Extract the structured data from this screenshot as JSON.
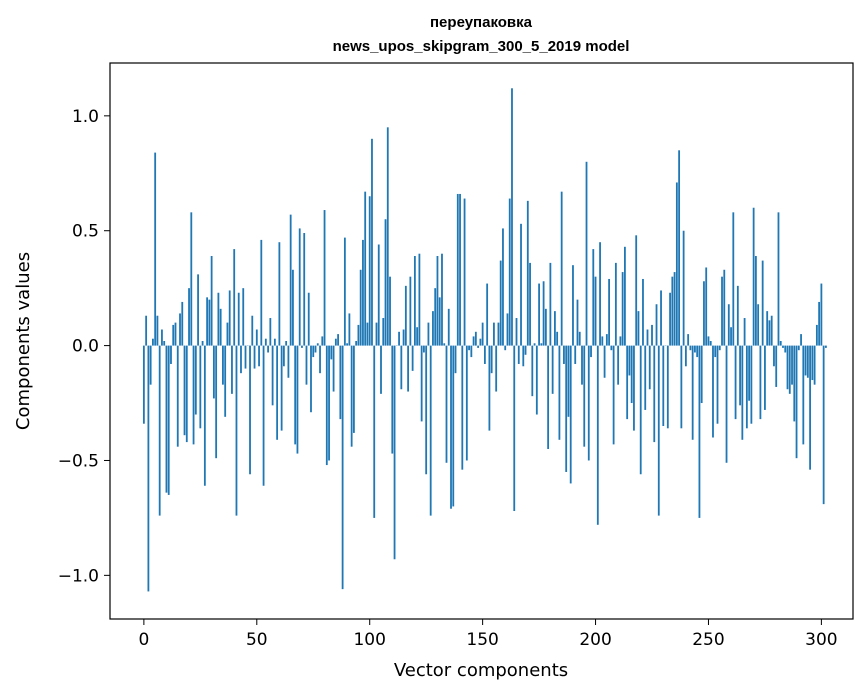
{
  "chart_data": {
    "type": "bar",
    "title_lines": [
      "переупаковка",
      "news_upos_skipgram_300_5_2019 model"
    ],
    "xlabel": "Vector components",
    "ylabel": "Components values",
    "xlim": [
      -15,
      314
    ],
    "ylim": [
      -1.19,
      1.23
    ],
    "xticks": [
      0,
      50,
      100,
      150,
      200,
      250,
      300
    ],
    "yticks": [
      -1.0,
      -0.5,
      0.0,
      0.5,
      1.0
    ],
    "ytick_labels": [
      "−1.0",
      "−0.5",
      "0.0",
      "0.5",
      "1.0"
    ],
    "bar_color": "#1f77b4",
    "grid": false,
    "legend": "none",
    "values": [
      -0.34,
      0.13,
      -1.07,
      -0.17,
      0.03,
      0.84,
      0.13,
      -0.74,
      0.07,
      0.02,
      -0.64,
      -0.65,
      -0.08,
      0.09,
      0.1,
      -0.44,
      0.14,
      0.19,
      -0.39,
      -0.42,
      0.25,
      0.58,
      -0.43,
      -0.3,
      0.31,
      -0.36,
      0.02,
      -0.61,
      0.21,
      0.2,
      0.39,
      -0.23,
      -0.49,
      0.23,
      0.16,
      -0.17,
      -0.31,
      0.1,
      0.24,
      -0.21,
      0.42,
      -0.74,
      0.23,
      -0.12,
      0.25,
      -0.1,
      0.0,
      -0.56,
      0.13,
      -0.1,
      0.07,
      -0.09,
      0.46,
      -0.61,
      0.03,
      -0.03,
      0.12,
      -0.26,
      0.03,
      -0.41,
      0.45,
      -0.37,
      -0.09,
      0.02,
      -0.14,
      0.57,
      0.33,
      -0.43,
      -0.47,
      0.51,
      -0.01,
      0.49,
      -0.17,
      0.23,
      -0.29,
      -0.05,
      -0.03,
      0.01,
      -0.12,
      0.04,
      0.59,
      -0.52,
      -0.5,
      -0.06,
      -0.2,
      0.03,
      0.05,
      -0.32,
      -1.06,
      0.47,
      0.01,
      0.14,
      -0.44,
      -0.38,
      0.02,
      0.09,
      0.33,
      0.46,
      0.67,
      0.1,
      0.65,
      0.9,
      -0.75,
      0.1,
      0.44,
      -0.21,
      0.12,
      0.55,
      0.95,
      0.3,
      -0.47,
      -0.93,
      0.0,
      0.06,
      -0.19,
      0.07,
      0.26,
      -0.2,
      0.3,
      -0.11,
      0.39,
      0.08,
      0.4,
      -0.33,
      -0.03,
      -0.56,
      0.1,
      -0.74,
      0.15,
      0.25,
      0.39,
      0.21,
      0.4,
      0.01,
      -0.51,
      0.16,
      -0.71,
      -0.7,
      -0.12,
      0.66,
      0.66,
      -0.54,
      0.64,
      -0.5,
      -0.02,
      -0.05,
      0.04,
      0.06,
      -0.01,
      0.03,
      0.1,
      -0.08,
      0.27,
      -0.37,
      -0.12,
      0.1,
      -0.2,
      0.1,
      0.37,
      0.51,
      -0.02,
      0.14,
      0.64,
      1.12,
      -0.72,
      0.12,
      -0.08,
      0.53,
      -0.09,
      -0.04,
      0.63,
      0.36,
      -0.22,
      0.01,
      -0.3,
      0.27,
      0.01,
      0.28,
      0.16,
      -0.45,
      0.36,
      -0.21,
      0.15,
      0.06,
      -0.41,
      0.67,
      -0.08,
      -0.55,
      -0.31,
      -0.6,
      0.35,
      -0.08,
      0.2,
      0.06,
      -0.17,
      -0.44,
      0.8,
      -0.5,
      -0.05,
      0.42,
      0.3,
      -0.78,
      0.45,
      0.04,
      -0.14,
      0.05,
      0.29,
      -0.02,
      -0.43,
      0.36,
      -0.17,
      0.04,
      0.32,
      0.43,
      -0.32,
      -0.13,
      -0.25,
      -0.37,
      0.48,
      0.15,
      -0.56,
      0.29,
      -0.28,
      0.07,
      -0.19,
      0.09,
      -0.42,
      0.18,
      -0.74,
      0.24,
      -0.35,
      0.0,
      -0.36,
      0.23,
      0.3,
      0.32,
      0.71,
      0.85,
      -0.36,
      0.5,
      -0.09,
      0.05,
      -0.02,
      -0.41,
      -0.03,
      -0.05,
      -0.75,
      -0.25,
      0.28,
      0.34,
      0.04,
      0.02,
      -0.4,
      -0.05,
      -0.34,
      -0.02,
      0.3,
      0.33,
      -0.51,
      0.18,
      0.08,
      0.58,
      -0.32,
      0.26,
      -0.26,
      -0.41,
      0.12,
      -0.36,
      -0.24,
      -0.34,
      0.6,
      0.39,
      0.18,
      -0.32,
      0.37,
      -0.28,
      0.15,
      0.11,
      0.13,
      -0.09,
      -0.18,
      0.58,
      0.02,
      -0.01,
      -0.03,
      -0.19,
      -0.21,
      -0.17,
      -0.33,
      -0.49,
      -0.02,
      0.05,
      -0.43,
      -0.13,
      -0.14,
      -0.54,
      -0.15,
      -0.17,
      0.09,
      0.19,
      0.27,
      -0.69,
      -0.01
    ]
  }
}
